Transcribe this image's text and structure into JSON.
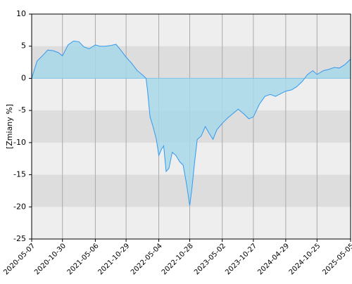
{
  "chart_data": {
    "type": "area",
    "y_label": "[Zmiany %]",
    "x": [
      "2020-05-07",
      "2020-06-07",
      "2020-07-07",
      "2020-08-07",
      "2020-09-07",
      "2020-10-07",
      "2020-10-30",
      "2020-12-01",
      "2021-01-01",
      "2021-02-01",
      "2021-03-01",
      "2021-04-01",
      "2021-05-06",
      "2021-06-01",
      "2021-07-01",
      "2021-08-01",
      "2021-09-01",
      "2021-10-01",
      "2021-10-29",
      "2021-12-01",
      "2022-01-01",
      "2022-02-01",
      "2022-02-20",
      "2022-03-01",
      "2022-03-15",
      "2022-04-01",
      "2022-04-20",
      "2022-05-04",
      "2022-05-20",
      "2022-06-01",
      "2022-06-15",
      "2022-07-01",
      "2022-07-20",
      "2022-08-10",
      "2022-09-01",
      "2022-09-20",
      "2022-10-10",
      "2022-10-28",
      "2022-11-10",
      "2022-11-25",
      "2022-12-10",
      "2023-01-01",
      "2023-01-25",
      "2023-02-15",
      "2023-03-10",
      "2023-04-01",
      "2023-05-02",
      "2023-06-01",
      "2023-07-01",
      "2023-08-01",
      "2023-09-01",
      "2023-10-01",
      "2023-10-27",
      "2023-12-01",
      "2024-01-01",
      "2024-02-01",
      "2024-03-01",
      "2024-04-29",
      "2024-06-01",
      "2024-07-01",
      "2024-08-01",
      "2024-09-01",
      "2024-10-01",
      "2024-10-25",
      "2024-12-01",
      "2025-01-01",
      "2025-02-01",
      "2025-03-01",
      "2025-04-01",
      "2025-05-05"
    ],
    "series": [
      {
        "color": "#3399ee",
        "fill": "#a8d8ea",
        "values": [
          0,
          2.7,
          3.5,
          4.4,
          4.3,
          4.0,
          3.5,
          5.2,
          5.8,
          5.7,
          4.9,
          4.6,
          5.2,
          5.0,
          5.0,
          5.1,
          5.3,
          4.3,
          3.3,
          2.3,
          1.2,
          0.5,
          0,
          -2,
          -6,
          -7.5,
          -9.5,
          -12,
          -11,
          -10.5,
          -14.5,
          -14,
          -11.5,
          -12,
          -13,
          -13.5,
          -16.5,
          -19.8,
          -17,
          -13,
          -9.5,
          -9,
          -7.5,
          -8.5,
          -9.5,
          -8,
          -7,
          -6.2,
          -5.5,
          -4.8,
          -5.5,
          -6.3,
          -6,
          -4,
          -2.8,
          -2.5,
          -2.8,
          -2,
          -1.8,
          -1.3,
          -0.5,
          0.6,
          1.2,
          0.6,
          1.2,
          1.4,
          1.7,
          1.6,
          2.1,
          3.0
        ]
      }
    ],
    "xlim": [
      "2020-05-07",
      "2025-05-05"
    ],
    "xticks": [
      "2020-05-07",
      "2020-10-30",
      "2021-05-06",
      "2021-10-29",
      "2022-05-04",
      "2022-10-28",
      "2023-05-02",
      "2023-10-27",
      "2024-04-29",
      "2024-10-25",
      "2025-05-05"
    ],
    "ylim": [
      -25,
      10
    ],
    "yticks": [
      10,
      5,
      0,
      -5,
      -10,
      -15,
      -20,
      -25
    ],
    "grid": true
  }
}
